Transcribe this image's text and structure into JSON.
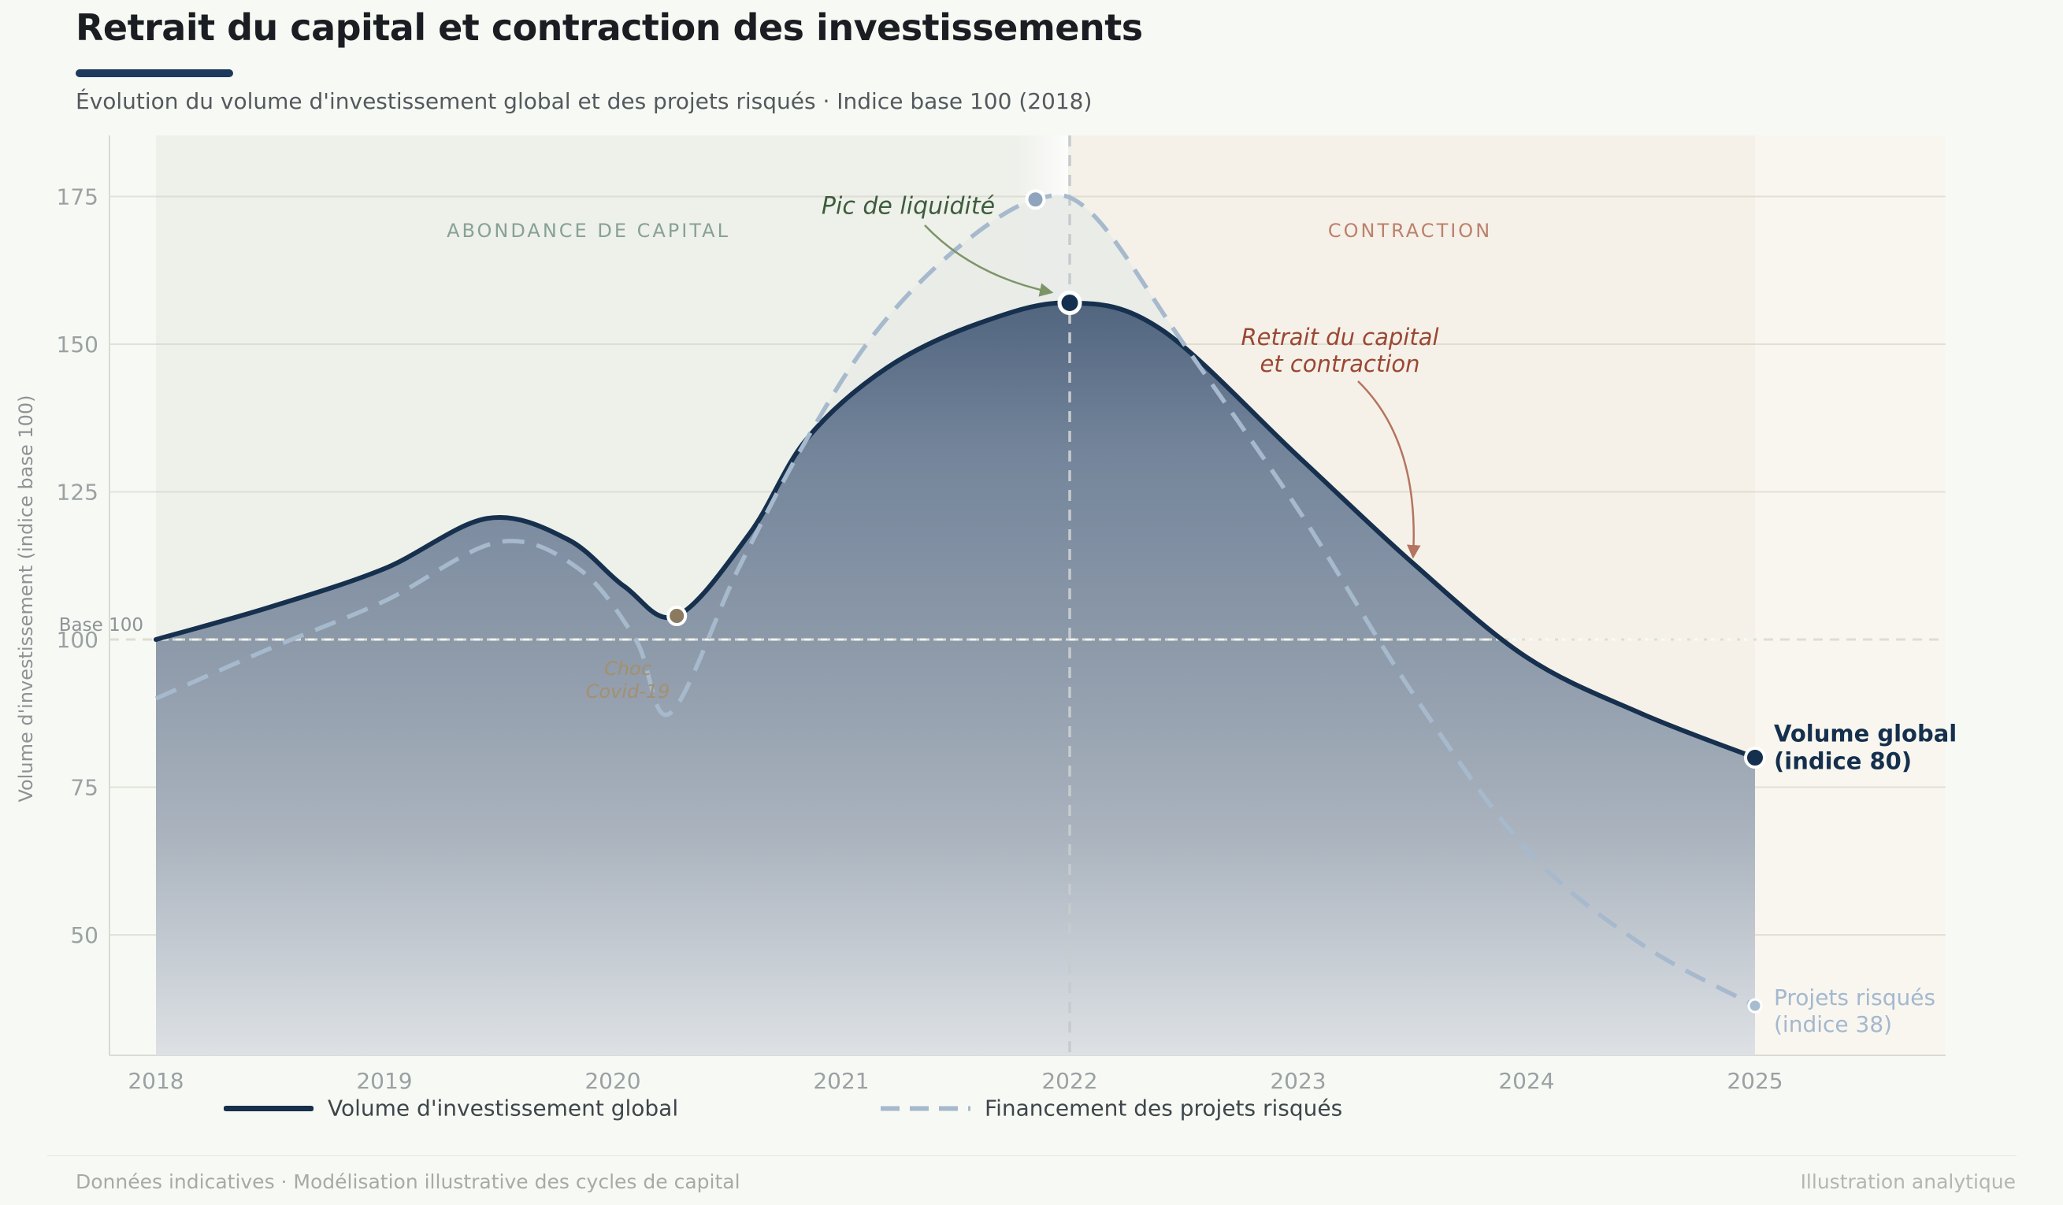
{
  "header": {
    "title": "Retrait du capital et contraction des investissements",
    "subtitle": "Évolution du volume d'investissement global et des projets risqués · Indice base 100 (2018)"
  },
  "footer": {
    "left": "Données indicatives · Modélisation illustrative des cycles de capital",
    "right": "Illustration analytique"
  },
  "chart_data": {
    "type": "area",
    "ylabel": "Volume d'investissement (indice base 100)",
    "xticks": [
      2018,
      2019,
      2020,
      2021,
      2022,
      2023,
      2024,
      2025
    ],
    "yticks": [
      50,
      75,
      100,
      125,
      150,
      175
    ],
    "xlim": [
      2017.8,
      2025.83
    ],
    "ylim": [
      30,
      185
    ],
    "grid": true,
    "baseline": {
      "value": 100,
      "label": "Base 100"
    },
    "divider_x": 2022,
    "zones": [
      {
        "label": "ABONDANCE DE CAPITAL",
        "from": 2018,
        "to": 2022,
        "color": "#eef0ea",
        "label_color": "#87a295"
      },
      {
        "label": "CONTRACTION",
        "from": 2022,
        "to": 2025,
        "color": "#f5f1e8",
        "label_color": "#bd806c"
      },
      {
        "label": "",
        "from": 2025,
        "to": 2025.83,
        "color": "#f8f6ef",
        "label_color": ""
      }
    ],
    "series": [
      {
        "name": "Volume d'investissement global",
        "style": "solid",
        "color": "#16304e",
        "points": [
          [
            2018,
            100
          ],
          [
            2018.5,
            105.5
          ],
          [
            2019,
            112
          ],
          [
            2019.45,
            120.5
          ],
          [
            2019.8,
            117
          ],
          [
            2020.05,
            109
          ],
          [
            2020.28,
            104
          ],
          [
            2020.6,
            118
          ],
          [
            2020.85,
            134
          ],
          [
            2021.2,
            146
          ],
          [
            2021.6,
            153.5
          ],
          [
            2022,
            157
          ],
          [
            2022.4,
            152.5
          ],
          [
            2023,
            131
          ],
          [
            2023.5,
            113
          ],
          [
            2024,
            97
          ],
          [
            2024.5,
            87.5
          ],
          [
            2025,
            80
          ]
        ]
      },
      {
        "name": "Financement des projets risqués",
        "style": "dashed",
        "color": "#a6b9cd",
        "points": [
          [
            2018,
            90
          ],
          [
            2018.5,
            98.5
          ],
          [
            2019,
            106.5
          ],
          [
            2019.5,
            116.5
          ],
          [
            2019.85,
            112
          ],
          [
            2020.1,
            100
          ],
          [
            2020.25,
            87.5
          ],
          [
            2020.55,
            112
          ],
          [
            2020.85,
            134
          ],
          [
            2021.15,
            152
          ],
          [
            2021.5,
            166
          ],
          [
            2021.85,
            174.5
          ],
          [
            2022.1,
            172
          ],
          [
            2022.5,
            150
          ],
          [
            2023,
            122
          ],
          [
            2023.5,
            91
          ],
          [
            2024,
            64.5
          ],
          [
            2024.5,
            48.5
          ],
          [
            2025,
            38
          ]
        ]
      }
    ],
    "markers": [
      {
        "name": "covid-dip-marker",
        "x": 2020.28,
        "y": 104,
        "fill": "#8b7a60",
        "r": 11,
        "ring": 4
      },
      {
        "name": "liquidity-peak-marker",
        "x": 2021.85,
        "y": 174.5,
        "fill": "#8fa5bd",
        "r": 11,
        "ring": 4
      },
      {
        "name": "volume-peak-marker",
        "x": 2022,
        "y": 157,
        "fill": "#14304e",
        "r": 13,
        "ring": 5
      },
      {
        "name": "volume-end-marker",
        "x": 2025,
        "y": 80,
        "fill": "#14304e",
        "r": 12,
        "ring": 4
      },
      {
        "name": "risky-end-marker",
        "x": 2025,
        "y": 38,
        "fill": "#a8bccf",
        "r": 8,
        "ring": 3
      }
    ],
    "annotations": {
      "peak_liquidity": {
        "text": "Pic de liquidité",
        "color": "#3d5c3c"
      },
      "retrait": {
        "text": "Retrait du capital\net contraction",
        "color": "#9b4733"
      },
      "covid": {
        "text": "Choc\nCovid-19",
        "color": "#a3906e"
      },
      "base100": {
        "text": "Base 100"
      },
      "end_solid": {
        "text": "Volume global\n(indice 80)",
        "color": "#15304d"
      },
      "end_dashed": {
        "text": "Projets risqués\n(indice 38)",
        "color": "#a4b8ce"
      }
    }
  }
}
